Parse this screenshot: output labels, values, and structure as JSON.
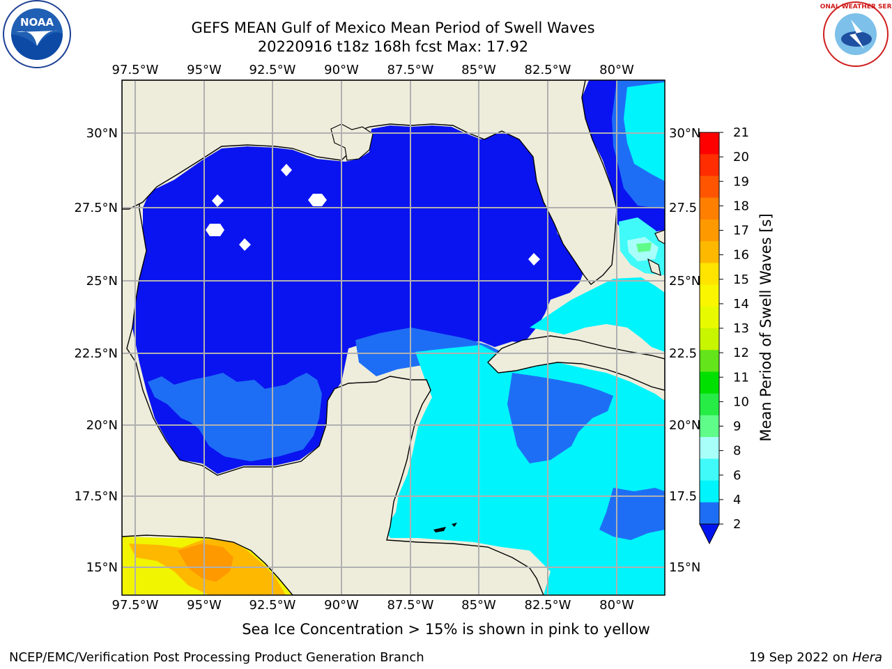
{
  "header": {
    "title": "GEFS MEAN Gulf of Mexico Mean Period of Swell Waves",
    "subtitle": "20220916 t18z 168h fcst   Max: 17.92"
  },
  "map": {
    "lon_ticks_top": [
      "97.5°W",
      "95°W",
      "92.5°W",
      "90°W",
      "87.5°W",
      "85°W",
      "82.5°W",
      "80°W"
    ],
    "lon_ticks_bottom": [
      "97.5°W",
      "95°W",
      "92.5°W",
      "90°W",
      "87.5°W",
      "85°W",
      "82.5°W",
      "80°W"
    ],
    "lat_ticks_left": [
      "30°N",
      "27.5°N",
      "25°N",
      "22.5°N",
      "20°N",
      "17.5°N",
      "15°N"
    ],
    "lat_ticks_right": [
      "30°N",
      "27.5",
      "25°N",
      "22.5",
      "20°N",
      "17.5",
      "15°N"
    ],
    "colors": {
      "land": "#eeeddc",
      "water_low": "#0a14f0",
      "water_2_4": "#1e6ef5",
      "water_4_6": "#00f4fb",
      "water_6_8": "#3ffaf8",
      "water_8_9": "#a8fffa",
      "gridline": "#b0b0b0",
      "coast": "#000000"
    }
  },
  "colorbar": {
    "label": "Mean Period of Swell Waves [s]",
    "ticks": [
      "21",
      "20",
      "19",
      "18",
      "17",
      "16",
      "15",
      "14",
      "13",
      "12",
      "11",
      "10",
      "9",
      "8",
      "6",
      "4",
      "2"
    ],
    "colors": [
      "#ff0000",
      "#ff2d00",
      "#ff5500",
      "#ff7f00",
      "#ff9900",
      "#ffb800",
      "#ffe400",
      "#f9f600",
      "#e7fa00",
      "#c8f500",
      "#64e41a",
      "#00e000",
      "#27ec45",
      "#5ffc8a",
      "#a8fffa",
      "#3ffaf8",
      "#00f4fb",
      "#1e6ef5"
    ],
    "extend_color": "#0014f0"
  },
  "footer": {
    "note": "Sea Ice Concentration > 15% is shown in pink to yellow",
    "credit": "NCEP/EMC/Verification Post Processing Product Generation Branch",
    "date": "19 Sep 2022 on",
    "host": "Hera"
  },
  "logos": {
    "noaa_text": "NOAA",
    "nws_text": "NATIONAL WEATHER SERVICE"
  }
}
